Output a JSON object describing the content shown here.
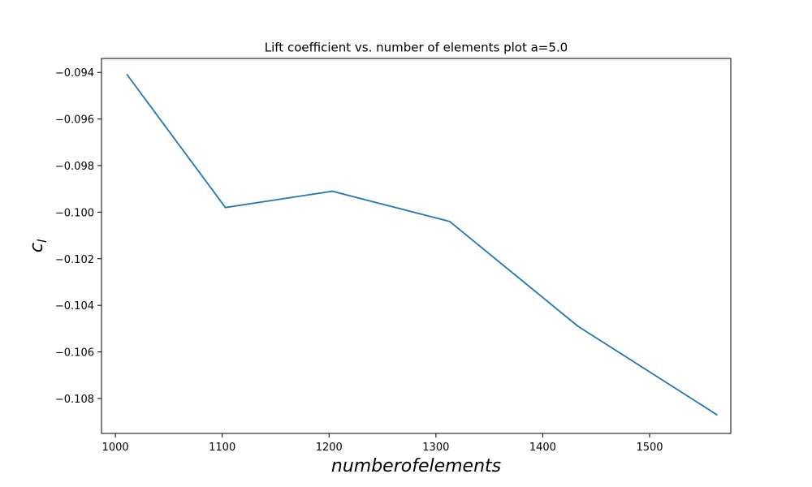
{
  "chart_data": {
    "type": "line",
    "title": "Lift coefficient vs. number of elements plot a=5.0",
    "xlabel": "numberofelements",
    "ylabel": "c",
    "ylabel_subscript": "l",
    "x": [
      1011,
      1103,
      1203,
      1313,
      1433,
      1563
    ],
    "series": [
      {
        "values": [
          -0.0941,
          -0.0998,
          -0.0991,
          -0.1004,
          -0.1049,
          -0.1087
        ],
        "color": "#1f77b4"
      }
    ],
    "xlim": [
      987,
      1576
    ],
    "ylim": [
      -0.1095,
      -0.0934
    ],
    "xticks": [
      1000,
      1100,
      1200,
      1300,
      1400,
      1500
    ],
    "xtick_labels": [
      "1000",
      "1100",
      "1200",
      "1300",
      "1400",
      "1500"
    ],
    "yticks": [
      -0.094,
      -0.096,
      -0.098,
      -0.1,
      -0.102,
      -0.104,
      -0.106,
      -0.108
    ],
    "ytick_labels": [
      "−0.094",
      "−0.096",
      "−0.098",
      "−0.100",
      "−0.102",
      "−0.104",
      "−0.106",
      "−0.108"
    ],
    "grid": false,
    "legend": false
  }
}
